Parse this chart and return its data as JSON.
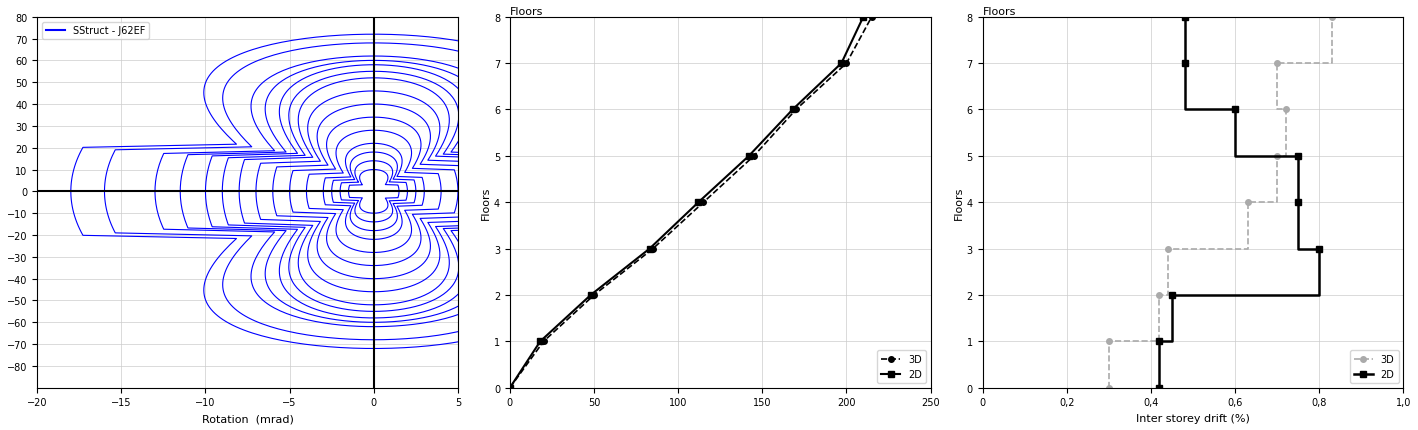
{
  "plot1": {
    "title": "",
    "xlabel": "Rotation  (mrad)",
    "ylabel": "",
    "xlim": [
      -20,
      5
    ],
    "ylim": [
      -90,
      80
    ],
    "yticks": [
      -80,
      -70,
      -60,
      -50,
      -40,
      -30,
      -20,
      -10,
      0,
      10,
      20,
      30,
      40,
      50,
      60,
      70,
      80
    ],
    "xticks": [
      -20,
      -15,
      -10,
      -5,
      0,
      5
    ],
    "legend_label": "SStruct - J62EF",
    "color": "#0000FF",
    "amplitudes": [
      [
        1.5,
        10
      ],
      [
        2.0,
        14
      ],
      [
        2.5,
        18
      ],
      [
        3.0,
        22
      ],
      [
        4.0,
        28
      ],
      [
        5.0,
        34
      ],
      [
        6.0,
        40
      ],
      [
        7.0,
        46
      ],
      [
        8.0,
        52
      ],
      [
        9.0,
        55
      ],
      [
        10.0,
        58
      ],
      [
        11.5,
        60
      ],
      [
        13.0,
        62
      ],
      [
        16.0,
        68
      ],
      [
        18.0,
        72
      ]
    ]
  },
  "plot2": {
    "title": "Floors",
    "xlabel": "",
    "ylabel": "Floors",
    "xlim": [
      0,
      250
    ],
    "ylim": [
      0,
      8
    ],
    "xticks": [
      0,
      50,
      100,
      150,
      200,
      250
    ],
    "yticks": [
      0,
      1,
      2,
      3,
      4,
      5,
      6,
      7,
      8
    ],
    "series_3d_x": [
      0,
      20,
      50,
      85,
      115,
      145,
      170,
      200,
      215
    ],
    "series_3d_y": [
      0,
      1,
      2,
      3,
      4,
      5,
      6,
      7,
      8
    ],
    "series_2d_x": [
      0,
      18,
      48,
      83,
      112,
      142,
      168,
      197,
      210
    ],
    "series_2d_y": [
      0,
      1,
      2,
      3,
      4,
      5,
      6,
      7,
      8
    ],
    "color_3d": "#000000",
    "color_2d": "#000000",
    "legend_3d": "3D",
    "legend_2d": "2D"
  },
  "plot3": {
    "title": "Floors",
    "xlabel": "Inter storey drift (%)",
    "ylabel": "Floors",
    "xlim": [
      0,
      1.0
    ],
    "ylim": [
      0,
      8
    ],
    "xticks": [
      0.0,
      0.2,
      0.4,
      0.6,
      0.8,
      1.0
    ],
    "yticks": [
      0,
      1,
      2,
      3,
      4,
      5,
      6,
      7,
      8
    ],
    "series_3d_x": [
      0.3,
      0.3,
      0.42,
      0.44,
      0.63,
      0.7,
      0.72,
      0.7,
      0.83
    ],
    "series_3d_y": [
      0,
      1,
      2,
      3,
      4,
      5,
      6,
      7,
      8
    ],
    "series_2d_x": [
      0.42,
      0.42,
      0.45,
      0.8,
      0.75,
      0.75,
      0.6,
      0.48,
      0.48
    ],
    "series_2d_y": [
      0,
      1,
      2,
      3,
      4,
      5,
      6,
      7,
      8
    ],
    "color_3d": "#aaaaaa",
    "color_2d": "#000000",
    "legend_3d": "3D",
    "legend_2d": "2D"
  },
  "background_color": "#ffffff",
  "grid_color": "#cccccc"
}
